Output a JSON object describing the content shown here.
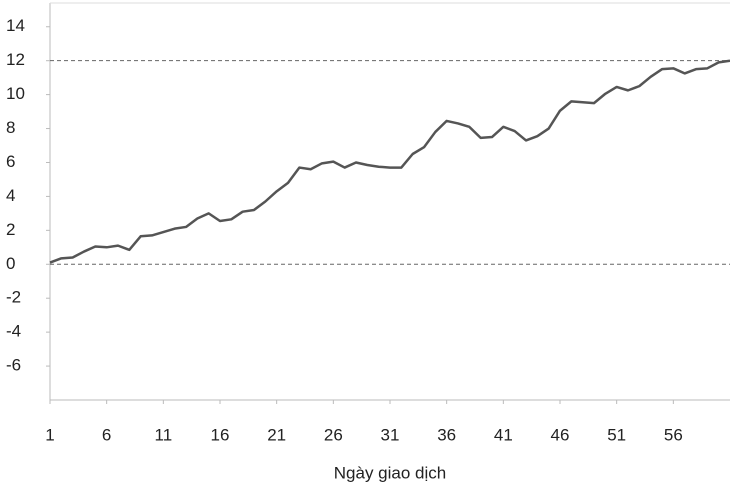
{
  "chart_data": {
    "type": "line",
    "x_label": "Ngày giao dịch",
    "x": [
      1,
      2,
      3,
      4,
      5,
      6,
      7,
      8,
      9,
      10,
      11,
      12,
      13,
      14,
      15,
      16,
      17,
      18,
      19,
      20,
      21,
      22,
      23,
      24,
      25,
      26,
      27,
      28,
      29,
      30,
      31,
      32,
      33,
      34,
      35,
      36,
      37,
      38,
      39,
      40,
      41,
      42,
      43,
      44,
      45,
      46,
      47,
      48,
      49,
      50,
      51,
      52,
      53,
      54,
      55,
      56,
      57,
      58,
      59,
      60,
      61
    ],
    "series": [
      {
        "color": "#555555",
        "values": [
          0.1,
          0.35,
          0.4,
          0.75,
          1.05,
          1.0,
          1.1,
          0.85,
          1.65,
          1.7,
          1.9,
          2.1,
          2.2,
          2.7,
          3.0,
          2.55,
          2.65,
          3.1,
          3.2,
          3.7,
          4.3,
          4.8,
          5.7,
          5.6,
          5.95,
          6.05,
          5.7,
          6.0,
          5.85,
          5.75,
          5.7,
          5.7,
          6.5,
          6.9,
          7.8,
          8.45,
          8.3,
          8.1,
          7.45,
          7.5,
          8.1,
          7.85,
          7.3,
          7.55,
          8.0,
          9.05,
          9.6,
          9.55,
          9.5,
          10.05,
          10.45,
          10.25,
          10.5,
          11.05,
          11.5,
          11.55,
          11.25,
          11.5,
          11.55,
          11.9,
          12.0
        ]
      }
    ],
    "xlim": [
      1,
      61
    ],
    "xticks": [
      1,
      6,
      11,
      16,
      21,
      26,
      31,
      36,
      41,
      46,
      51,
      56
    ],
    "ylim": [
      -8,
      15.4
    ],
    "yticks": [
      -6,
      -4,
      -2,
      0,
      2,
      4,
      6,
      8,
      10,
      12,
      14
    ],
    "reference_lines": [
      0,
      12
    ]
  }
}
